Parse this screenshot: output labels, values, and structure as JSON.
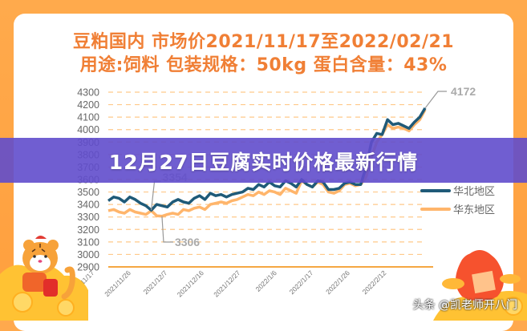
{
  "header": {
    "line1": "豆粕国内 市场价2021/11/17至2022/02/21",
    "line2": "用途:饲料   包装规格：50kg   蛋白含量：43%"
  },
  "banner": {
    "title": "12月27日豆腐实时价格最新行情"
  },
  "watermark": "头条 @凯老师开八门",
  "colors": {
    "frame": "#ffa94d",
    "title": "#f07f35",
    "north": "#1f5a78",
    "east": "#ffb56b",
    "grid": "#ffc98a",
    "banner": "#604ccc"
  },
  "chart_data": {
    "type": "line",
    "title": "豆粕国内 市场价2021/11/17至2022/02/21",
    "subtitle": "用途:饲料 包装规格：50kg 蛋白含量：43%",
    "xlabel": "",
    "ylabel": "",
    "ylim": [
      2900,
      4300
    ],
    "yticks": [
      4300,
      4200,
      4100,
      4000,
      3900,
      3800,
      3700,
      3600,
      3500,
      3400,
      3300,
      3200,
      3100,
      3000,
      2900
    ],
    "xticks": [
      "2021/11/17",
      "2021/11/26",
      "2021/12/7",
      "2021/12/16",
      "2021/12/27",
      "2022/1/6",
      "2022/1/17",
      "2022/1/26",
      "2022/2/12"
    ],
    "grid": true,
    "legend": {
      "position": "right",
      "entries": [
        "华北地区",
        "华东地区"
      ]
    },
    "annotations": [
      {
        "label": "3354",
        "series": "华北地区",
        "note": "minimum"
      },
      {
        "label": "3306",
        "series": "华东地区",
        "note": "minimum"
      },
      {
        "label": "4172",
        "series": "华北地区",
        "note": "last value"
      }
    ],
    "series": [
      {
        "name": "华北地区",
        "values": [
          3430,
          3460,
          3450,
          3420,
          3460,
          3440,
          3410,
          3390,
          3354,
          3400,
          3390,
          3380,
          3420,
          3440,
          3420,
          3410,
          3450,
          3470,
          3440,
          3490,
          3470,
          3480,
          3460,
          3480,
          3490,
          3500,
          3530,
          3520,
          3560,
          3540,
          3580,
          3550,
          3540,
          3590,
          3570,
          3540,
          3600,
          3560,
          3540,
          3590,
          3580,
          3520,
          3520,
          3530,
          3570,
          3580,
          3560,
          3560,
          3700,
          3900,
          3970,
          3960,
          4080,
          4040,
          4050,
          4030,
          4010,
          4060,
          4100,
          4172
        ]
      },
      {
        "name": "华东地区",
        "values": [
          3350,
          3360,
          3340,
          3330,
          3360,
          3340,
          3330,
          3320,
          3350,
          3310,
          3306,
          3320,
          3330,
          3320,
          3360,
          3350,
          3370,
          3380,
          3360,
          3400,
          3410,
          3420,
          3410,
          3430,
          3440,
          3460,
          3480,
          3470,
          3500,
          3480,
          3510,
          3500,
          3480,
          3530,
          3510,
          3490,
          3590,
          3560,
          3540,
          3580,
          3560,
          3500,
          3490,
          3510,
          3560,
          3570,
          3550,
          3560,
          3620,
          3780,
          3900,
          3960,
          4040,
          4010,
          4020,
          4010,
          3990,
          4040,
          4080,
          4160
        ]
      }
    ]
  }
}
